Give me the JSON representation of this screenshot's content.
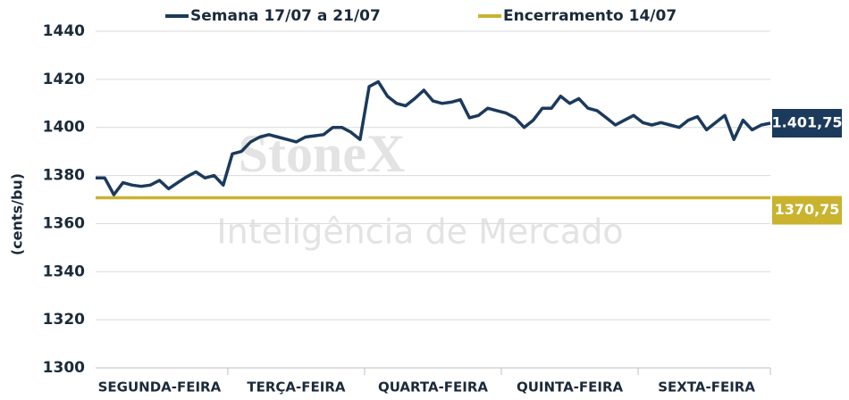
{
  "chart_data": {
    "type": "line",
    "y_label": "(cents/bu)",
    "watermark": {
      "brand": "StoneX",
      "tagline": "Inteligência de Mercado"
    },
    "categories": [
      null,
      null,
      null,
      null,
      null,
      null,
      null,
      "SEGUNDA-FEIRA",
      null,
      null,
      null,
      null,
      null,
      null,
      null,
      null,
      null,
      null,
      null,
      null,
      null,
      null,
      "TERÇA-FEIRA",
      null,
      null,
      null,
      null,
      null,
      null,
      null,
      null,
      null,
      null,
      null,
      null,
      null,
      null,
      "QUARTA-FEIRA",
      null,
      null,
      null,
      null,
      null,
      null,
      null,
      null,
      null,
      null,
      null,
      null,
      null,
      null,
      "QUINTA-FEIRA",
      null,
      null,
      null,
      null,
      null,
      null,
      null,
      null,
      null,
      null,
      null,
      null,
      null,
      null,
      "SEXTA-FEIRA",
      null,
      null,
      null,
      null,
      null,
      null,
      null
    ],
    "series": [
      {
        "name": "Semana 17/07 a 21/07",
        "color": "#1b3a5c",
        "values": [
          1379,
          1379,
          1372,
          1377,
          1376,
          1375.5,
          1376,
          1378,
          1374.5,
          1377,
          1379.5,
          1381.5,
          1379,
          1380,
          1376,
          1389,
          1390,
          1394,
          1396,
          1397,
          1396,
          1395,
          1394,
          1396,
          1396.5,
          1397,
          1400,
          1400,
          1398,
          1395,
          1417,
          1419,
          1413,
          1410,
          1409,
          1412,
          1415.5,
          1411,
          1410,
          1410.5,
          1411.5,
          1404,
          1405,
          1408,
          1407,
          1406,
          1404,
          1400,
          1403,
          1408,
          1408,
          1413,
          1410,
          1412,
          1408,
          1407,
          1404,
          1401,
          1403,
          1405,
          1402,
          1401,
          1402,
          1401,
          1400,
          1403,
          1404.5,
          1399,
          1402,
          1405,
          1395,
          1403,
          1399,
          1401,
          1401.75
        ],
        "last_value_label": "1.401,75"
      }
    ],
    "reference": {
      "name": "Encerramento 14/07",
      "color": "#c9b32f",
      "value": 1370.75,
      "value_label": "1370,75"
    },
    "ylim": [
      1300,
      1440
    ],
    "yticks": [
      1300,
      1320,
      1340,
      1360,
      1380,
      1400,
      1420,
      1440
    ],
    "grid": true
  }
}
